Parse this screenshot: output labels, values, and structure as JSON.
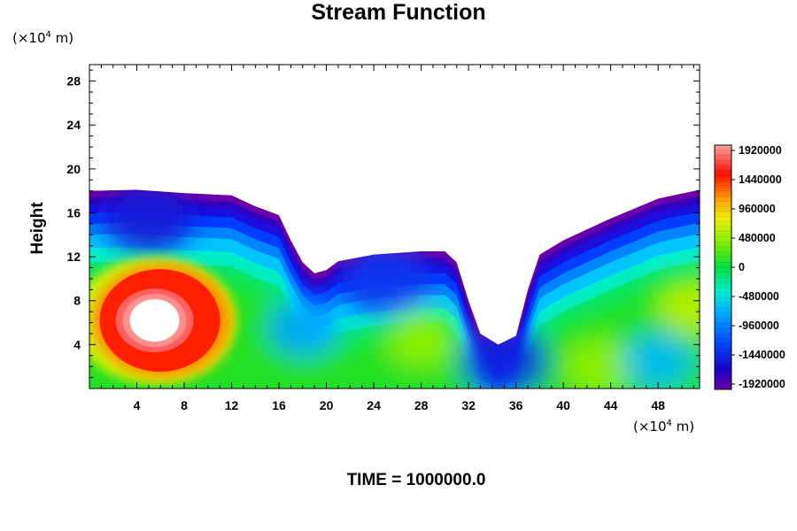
{
  "chart_data": {
    "type": "heatmap",
    "title": "Stream Function",
    "xlabel": "",
    "ylabel": "Height",
    "x_unit": "(×10⁴ m)",
    "y_unit": "(×10⁴ m)",
    "xlim": [
      0,
      51.5
    ],
    "ylim": [
      0,
      29.5
    ],
    "x_ticks": [
      "4",
      "8",
      "12",
      "16",
      "20",
      "24",
      "28",
      "32",
      "36",
      "40",
      "44",
      "48"
    ],
    "y_ticks": [
      "4",
      "8",
      "12",
      "16",
      "20",
      "24",
      "28"
    ],
    "colorbar": {
      "min": -1920000,
      "max": 1920000,
      "labels": [
        "1920000",
        "1440000",
        "960000",
        "480000",
        "0",
        "-480000",
        "-960000",
        "-1440000",
        "-1920000"
      ]
    },
    "top_boundary": [
      [
        0,
        18.0
      ],
      [
        4,
        18.1
      ],
      [
        8,
        17.8
      ],
      [
        12,
        17.6
      ],
      [
        14,
        16.6
      ],
      [
        16,
        15.8
      ],
      [
        17,
        13.5
      ],
      [
        18,
        11.5
      ],
      [
        19,
        10.5
      ],
      [
        20,
        10.8
      ],
      [
        21,
        11.6
      ],
      [
        24,
        12.2
      ],
      [
        28,
        12.5
      ],
      [
        30,
        12.5
      ],
      [
        31,
        11.5
      ],
      [
        32,
        8.0
      ],
      [
        33,
        5.0
      ],
      [
        34.5,
        4.0
      ],
      [
        36,
        4.8
      ],
      [
        37,
        9.0
      ],
      [
        38,
        12.2
      ],
      [
        40,
        13.5
      ],
      [
        44,
        15.5
      ],
      [
        48,
        17.3
      ],
      [
        51.5,
        18.1
      ]
    ],
    "features": [
      {
        "x": 5.5,
        "y": 6.2,
        "value": 1920000
      },
      {
        "x": 7.0,
        "y": 5.5,
        "value": 1400000
      },
      {
        "x": 51.0,
        "y": 7.5,
        "value": 600000
      },
      {
        "x": 28.0,
        "y": 4.5,
        "value": 450000
      },
      {
        "x": 43.0,
        "y": 2.0,
        "value": 450000
      },
      {
        "x": 48.0,
        "y": 2.5,
        "value": -650000
      },
      {
        "x": 18.0,
        "y": 5.5,
        "value": -750000
      },
      {
        "x": 35.0,
        "y": 2.5,
        "value": -1400000
      },
      {
        "x": 5.0,
        "y": 15.5,
        "value": -1500000
      },
      {
        "x": 25.0,
        "y": 10.0,
        "value": -1300000
      }
    ]
  },
  "footer": {
    "time_text": "TIME = 1000000.0"
  }
}
